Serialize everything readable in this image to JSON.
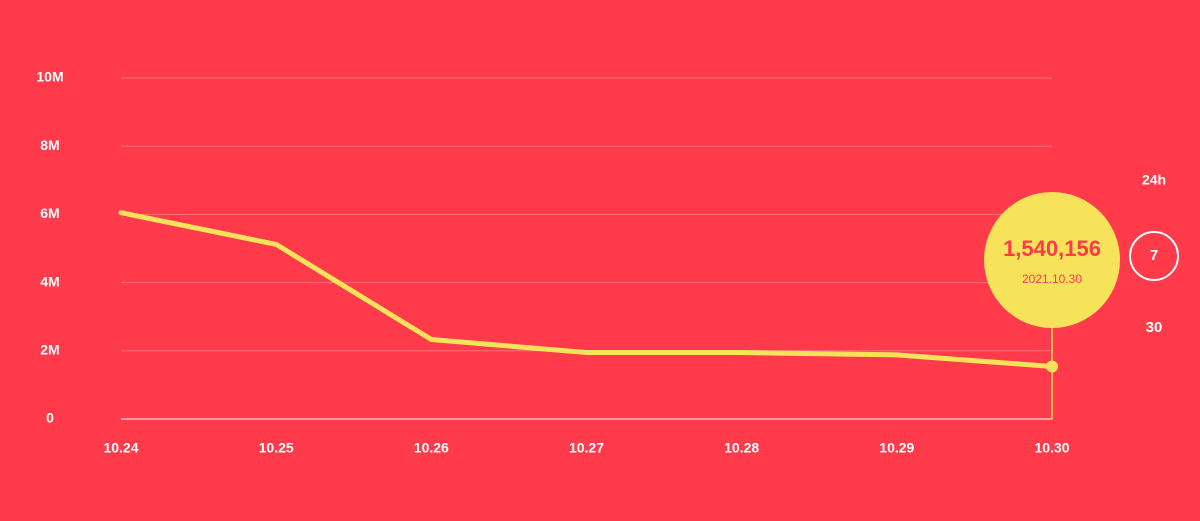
{
  "chart_data": {
    "type": "line",
    "categories": [
      "10.24",
      "10.25",
      "10.26",
      "10.27",
      "10.28",
      "10.29",
      "10.30"
    ],
    "values": [
      6050000,
      5120000,
      2330000,
      1950000,
      1950000,
      1880000,
      1540156
    ],
    "value_labels": [
      null,
      null,
      null,
      null,
      null,
      null,
      "1,540,156"
    ],
    "annotation": "2021.10.30",
    "color": "#f7e35a",
    "ylim": [
      0,
      10000000
    ],
    "yticks": [
      0,
      {
        "value": 2000000,
        "label": "2M"
      },
      {
        "value": 4000000,
        "label": "4M"
      },
      {
        "value": 6000000,
        "label": "6M"
      },
      {
        "value": 8000000,
        "label": "8M"
      },
      {
        "value": 10000000,
        "label": "10M"
      }
    ],
    "grid": true
  },
  "period_options": [
    "24h",
    "7",
    "30"
  ]
}
